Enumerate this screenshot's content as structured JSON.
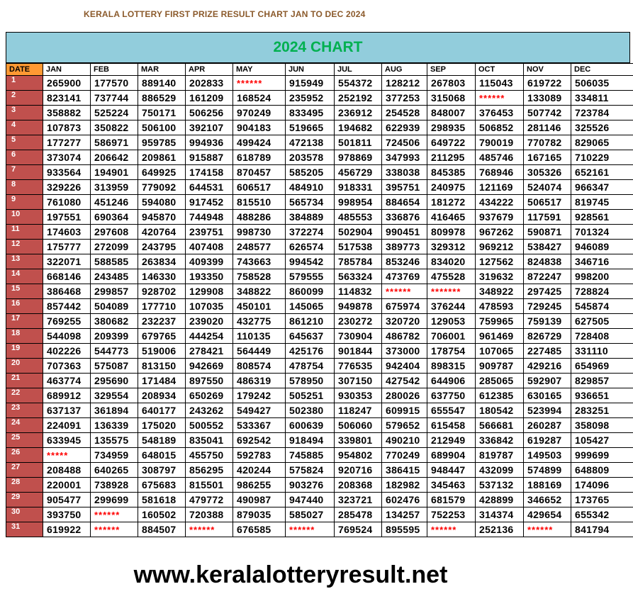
{
  "page_title": "KERALA LOTTERY FIRST PRIZE RESULT CHART JAN TO DEC 2024",
  "chart_title": "2024 CHART",
  "footer_url": "www.keralalotteryresult.net",
  "colors": {
    "header_band": "#92cddc",
    "chart_title": "#00b050",
    "date_header": "#ff9933",
    "date_column": "#c0504d",
    "missing_mark": "#ff0000"
  },
  "table": {
    "date_header": "DATE",
    "months": [
      "JAN",
      "FEB",
      "MAR",
      "APR",
      "MAY",
      "JUN",
      "JUL",
      "AUG",
      "SEP",
      "OCT",
      "NOV",
      "DEC"
    ],
    "rows": [
      {
        "date": "1",
        "values": [
          "265900",
          "177570",
          "889140",
          "202833",
          "******",
          "915949",
          "554372",
          "128212",
          "267803",
          "115043",
          "619722",
          "506035"
        ]
      },
      {
        "date": "2",
        "values": [
          "823141",
          "737744",
          "886529",
          "161209",
          "168524",
          "235952",
          "252192",
          "377253",
          "315068",
          "******",
          "133089",
          "334811"
        ]
      },
      {
        "date": "3",
        "values": [
          "358882",
          "525224",
          "750171",
          "506256",
          "970249",
          "833495",
          "236912",
          "254528",
          "848007",
          "376453",
          "507742",
          "723784"
        ]
      },
      {
        "date": "4",
        "values": [
          "107873",
          "350822",
          "506100",
          "392107",
          "904183",
          "519665",
          "194682",
          "622939",
          "298935",
          "506852",
          "281146",
          "325526"
        ]
      },
      {
        "date": "5",
        "values": [
          "177277",
          "586971",
          "959785",
          "994936",
          "499424",
          "472138",
          "501811",
          "724506",
          "649722",
          "790019",
          "770782",
          "829065"
        ]
      },
      {
        "date": "6",
        "values": [
          "373074",
          "206642",
          "209861",
          "915887",
          "618789",
          "203578",
          "978869",
          "347993",
          "211295",
          "485746",
          "167165",
          "710229"
        ]
      },
      {
        "date": "7",
        "values": [
          "933564",
          "194901",
          "649925",
          "174158",
          "870457",
          "585205",
          "456729",
          "338038",
          "845385",
          "768946",
          "305326",
          "652161"
        ]
      },
      {
        "date": "8",
        "values": [
          "329226",
          "313959",
          "779092",
          "644531",
          "606517",
          "484910",
          "918331",
          "395751",
          "240975",
          "121169",
          "524074",
          "966347"
        ]
      },
      {
        "date": "9",
        "values": [
          "761080",
          "451246",
          "594080",
          "917452",
          "815510",
          "565734",
          "998954",
          "884654",
          "181272",
          "434222",
          "506517",
          "819745"
        ]
      },
      {
        "date": "10",
        "values": [
          "197551",
          "690364",
          "945870",
          "744948",
          "488286",
          "384889",
          "485553",
          "336876",
          "416465",
          "937679",
          "117591",
          "928561"
        ]
      },
      {
        "date": "11",
        "values": [
          "174603",
          "297608",
          "420764",
          "239751",
          "998730",
          "372274",
          "502904",
          "990451",
          "809978",
          "967262",
          "590871",
          "701324"
        ]
      },
      {
        "date": "12",
        "values": [
          "175777",
          "272099",
          "243795",
          "407408",
          "248577",
          "626574",
          "517538",
          "389773",
          "329312",
          "969212",
          "538427",
          "946089"
        ]
      },
      {
        "date": "13",
        "values": [
          "322071",
          "588585",
          "263834",
          "409399",
          "743663",
          "994542",
          "785784",
          "853246",
          "834020",
          "127562",
          "824838",
          "346716"
        ]
      },
      {
        "date": "14",
        "values": [
          "668146",
          "243485",
          "146330",
          "193350",
          "758528",
          "579555",
          "563324",
          "473769",
          "475528",
          "319632",
          "872247",
          "998200"
        ]
      },
      {
        "date": "15",
        "values": [
          "386468",
          "299857",
          "928702",
          "129908",
          "348822",
          "860099",
          "114832",
          "******",
          "*******",
          "348922",
          "297425",
          "728824"
        ]
      },
      {
        "date": "16",
        "values": [
          "857442",
          "504089",
          "177710",
          "107035",
          "450101",
          "145065",
          "949878",
          "675974",
          "376244",
          "478593",
          "729245",
          "545874"
        ]
      },
      {
        "date": "17",
        "values": [
          "769255",
          "380682",
          "232237",
          "239020",
          "432775",
          "861210",
          "230272",
          "320720",
          "129053",
          "759965",
          "759139",
          "627505"
        ]
      },
      {
        "date": "18",
        "values": [
          "544098",
          "209399",
          "679765",
          "444254",
          "110135",
          "645637",
          "730904",
          "486782",
          "706001",
          "961469",
          "826729",
          "728408"
        ]
      },
      {
        "date": "19",
        "values": [
          "402226",
          "544773",
          "519006",
          "278421",
          "564449",
          "425176",
          "901844",
          "373000",
          "178754",
          "107065",
          "227485",
          "331110"
        ]
      },
      {
        "date": "20",
        "values": [
          "707363",
          "575087",
          "813150",
          "942669",
          "808574",
          "478754",
          "776535",
          "942404",
          "898315",
          "909787",
          "429216",
          "654969"
        ]
      },
      {
        "date": "21",
        "values": [
          "463774",
          "295690",
          "171484",
          "897550",
          "486319",
          "578950",
          "307150",
          "427542",
          "644906",
          "285065",
          "592907",
          "829857"
        ]
      },
      {
        "date": "22",
        "values": [
          "689912",
          "329554",
          "208934",
          "650269",
          "179242",
          "505251",
          "930353",
          "280026",
          "637750",
          "612385",
          "630165",
          "936651"
        ]
      },
      {
        "date": "23",
        "values": [
          "637137",
          "361894",
          "640177",
          "243262",
          "549427",
          "502380",
          "118247",
          "609915",
          "655547",
          "180542",
          "523994",
          "283251"
        ]
      },
      {
        "date": "24",
        "values": [
          "224091",
          "136339",
          "175020",
          "500552",
          "533367",
          "600639",
          "506060",
          "579652",
          "615458",
          "566681",
          "260287",
          "358098"
        ]
      },
      {
        "date": "25",
        "values": [
          "633945",
          "135575",
          "548189",
          "835041",
          "692542",
          "918494",
          "339801",
          "490210",
          "212949",
          "336842",
          "619287",
          "105427"
        ]
      },
      {
        "date": "26",
        "values": [
          "*****",
          "734959",
          "648015",
          "455750",
          "592783",
          "745885",
          "954802",
          "770249",
          "689904",
          "819787",
          "149503",
          "999699"
        ]
      },
      {
        "date": "27",
        "values": [
          "208488",
          "640265",
          "308797",
          "856295",
          "420244",
          "575824",
          "920716",
          "386415",
          "948447",
          "432099",
          "574899",
          "648809"
        ]
      },
      {
        "date": "28",
        "values": [
          "220001",
          "738928",
          "675683",
          "815501",
          "986255",
          "903276",
          "208368",
          "182982",
          "345463",
          "537132",
          "188169",
          "174096"
        ]
      },
      {
        "date": "29",
        "values": [
          "905477",
          "299699",
          "581618",
          "479772",
          "490987",
          "947440",
          "323721",
          "602476",
          "681579",
          "428899",
          "346652",
          "173765"
        ]
      },
      {
        "date": "30",
        "values": [
          "393750",
          "******",
          "160502",
          "720388",
          "879035",
          "585027",
          "285478",
          "134257",
          "752253",
          "314374",
          "429654",
          "655342"
        ]
      },
      {
        "date": "31",
        "values": [
          "619922",
          "******",
          "884507",
          "******",
          "676585",
          "******",
          "769524",
          "895595",
          "******",
          "252136",
          "******",
          "841794"
        ]
      }
    ]
  }
}
